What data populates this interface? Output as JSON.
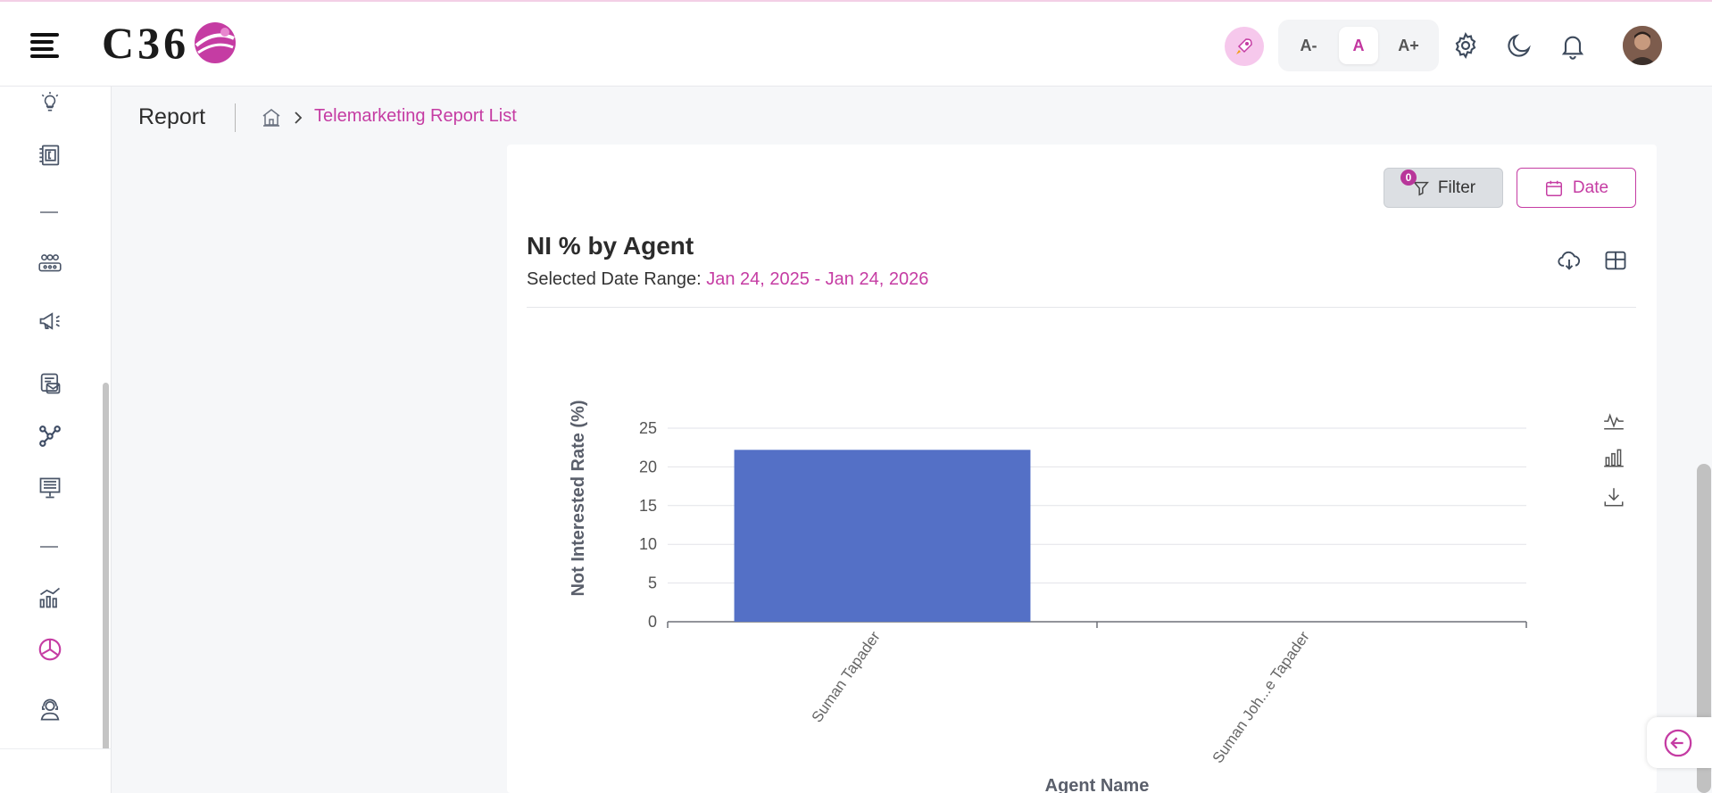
{
  "header": {
    "logo_text": "C36",
    "font_buttons": [
      "A-",
      "A",
      "A+"
    ],
    "active_font_button": "A"
  },
  "icons": {
    "top": [
      "hamburger-menu-icon",
      "rocket-icon",
      "gear-icon",
      "moon-icon",
      "bell-icon"
    ],
    "sidebar": [
      "lightbulb-icon",
      "invoice-icon",
      "team-icon",
      "megaphone-icon",
      "mail-icon",
      "workflow-icon",
      "presentation-icon",
      "analytics-icon",
      "pie-chart-icon",
      "support-agent-icon"
    ]
  },
  "colors": {
    "accent": "#c53ca3",
    "bar": "#5470c6",
    "active_icon": "#c53ca3"
  },
  "breadcrumb": {
    "title": "Report",
    "current": "Telemarketing Report List"
  },
  "toolbar": {
    "filter_label": "Filter",
    "filter_count": "0",
    "date_label": "Date"
  },
  "report": {
    "title": "NI % by Agent",
    "date_range_label": "Selected Date Range:",
    "date_range_value": "Jan 24, 2025 - Jan 24, 2026"
  },
  "chart_data": {
    "type": "bar",
    "categories": [
      "Suman Tapader",
      "Suman Joh...e Tapader"
    ],
    "values": [
      22.2,
      0
    ],
    "title": "",
    "xlabel": "Agent Name",
    "ylabel": "Not Interested Rate (%)",
    "ylim": [
      0,
      25
    ],
    "yticks": [
      0,
      5,
      10,
      15,
      20,
      25
    ],
    "grid": true
  }
}
